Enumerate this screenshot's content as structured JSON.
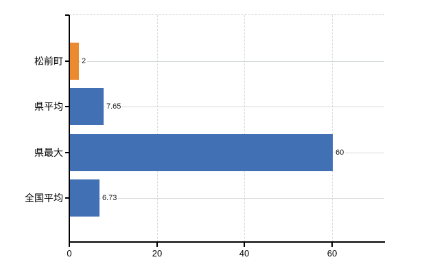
{
  "chart_data": {
    "type": "bar",
    "orientation": "horizontal",
    "title": "",
    "categories": [
      "松前町",
      "県平均",
      "県最大",
      "全国平均"
    ],
    "values": [
      2,
      7.65,
      60,
      6.73
    ],
    "value_labels": [
      "2",
      "7.65",
      "60",
      "6.73"
    ],
    "bar_colors": [
      "#EB8A2E",
      "#4170B4",
      "#4170B4",
      "#4170B4"
    ],
    "x_tick_values": [
      0,
      20,
      40,
      60
    ],
    "x_tick_labels": [
      "0",
      "20",
      "40",
      "60"
    ],
    "xlim": [
      0,
      72
    ],
    "grid": true,
    "legend_position": "none"
  },
  "colors": {
    "bar_blue": "#4170B4",
    "bar_orange": "#EB8A2E",
    "axis": "#000000",
    "horizontal_gridline": "#d3d9d4",
    "vertical_gridline": "#d9d9d9",
    "value_label_text": "#1a1a1a",
    "background": "#ffffff"
  }
}
